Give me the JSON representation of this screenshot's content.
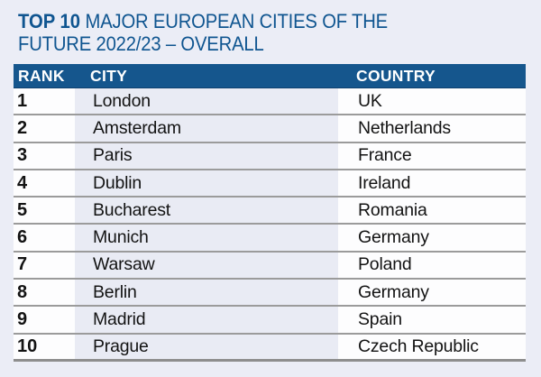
{
  "chart_data": {
    "type": "table",
    "title": "TOP 10 MAJOR EUROPEAN CITIES OF THE FUTURE 2022/23 – OVERALL",
    "columns": [
      "RANK",
      "CITY",
      "COUNTRY"
    ],
    "rows": [
      [
        "1",
        "London",
        "UK"
      ],
      [
        "2",
        "Amsterdam",
        "Netherlands"
      ],
      [
        "3",
        "Paris",
        "France"
      ],
      [
        "4",
        "Dublin",
        "Ireland"
      ],
      [
        "5",
        "Bucharest",
        "Romania"
      ],
      [
        "6",
        "Munich",
        "Germany"
      ],
      [
        "7",
        "Warsaw",
        "Poland"
      ],
      [
        "8",
        "Berlin",
        "Germany"
      ],
      [
        "9",
        "Madrid",
        "Spain"
      ],
      [
        "10",
        "Prague",
        "Czech Republic"
      ]
    ]
  },
  "title": {
    "bold": "TOP 10",
    "rest_line1": "MAJOR EUROPEAN CITIES OF THE",
    "line2": "FUTURE 2022/23 – OVERALL"
  },
  "colors": {
    "title_blue": "#0f5590",
    "header_background": "#15568d",
    "header_text": "#ffffff",
    "city_column_tint": "#e9ebf4",
    "white_column": "#fdfdfe",
    "page_background": "#ebedf6",
    "divider_gray": "#9b9b9b"
  }
}
